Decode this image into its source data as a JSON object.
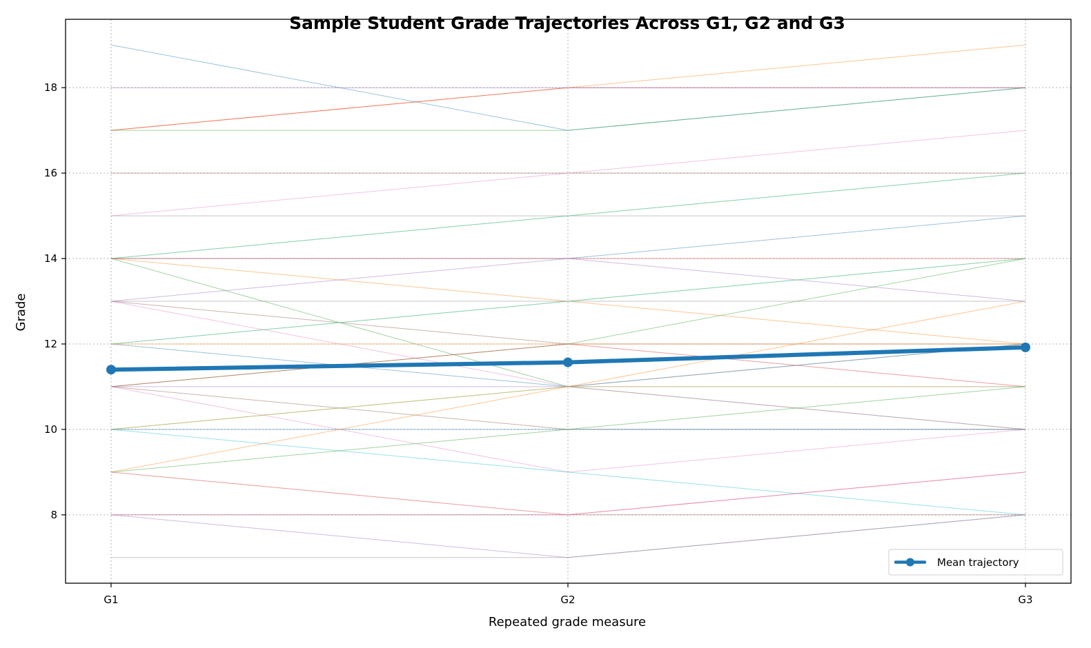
{
  "chart_data": {
    "type": "line",
    "title": "Sample Student Grade Trajectories Across G1, G2 and G3",
    "xlabel": "Repeated grade measure",
    "ylabel": "Grade",
    "categories": [
      "G1",
      "G2",
      "G3"
    ],
    "ylim": [
      6.4,
      19.6
    ],
    "yticks": [
      8,
      10,
      12,
      14,
      16,
      18
    ],
    "grid": true,
    "legend": {
      "position": "lower-right",
      "entries": [
        "Mean trajectory"
      ]
    },
    "mean_color": "#1f77b4",
    "mean_trajectory": {
      "name": "Mean trajectory",
      "values": [
        11.4,
        11.57,
        11.92
      ]
    },
    "student_colors": [
      "#1f77b4",
      "#ff7f0e",
      "#2ca02c",
      "#d62728",
      "#9467bd",
      "#8c564b",
      "#e377c2",
      "#7f7f7f",
      "#bcbd22",
      "#17becf"
    ],
    "student_trajectories": [
      [
        19,
        17,
        18
      ],
      [
        17,
        18,
        19
      ],
      [
        17,
        17,
        18
      ],
      [
        17,
        18,
        18
      ],
      [
        18,
        18,
        18
      ],
      [
        16,
        16,
        16
      ],
      [
        15,
        16,
        17
      ],
      [
        15,
        15,
        15
      ],
      [
        14,
        15,
        16
      ],
      [
        14,
        15,
        16
      ],
      [
        14,
        14,
        15
      ],
      [
        14,
        13,
        12
      ],
      [
        14,
        11,
        10
      ],
      [
        14,
        14,
        14
      ],
      [
        13,
        14,
        13
      ],
      [
        13,
        12,
        12
      ],
      [
        13,
        11,
        10
      ],
      [
        13,
        13,
        13
      ],
      [
        12,
        13,
        14
      ],
      [
        12,
        13,
        14
      ],
      [
        12,
        11,
        12
      ],
      [
        12,
        12,
        12
      ],
      [
        11,
        12,
        14
      ],
      [
        11,
        12,
        11
      ],
      [
        11,
        11,
        11
      ],
      [
        11,
        10,
        10
      ],
      [
        11,
        9,
        10
      ],
      [
        10,
        11,
        12
      ],
      [
        10,
        11,
        11
      ],
      [
        10,
        9,
        8
      ],
      [
        10,
        10,
        10
      ],
      [
        9,
        11,
        13
      ],
      [
        9,
        10,
        11
      ],
      [
        9,
        8,
        9
      ],
      [
        8,
        7,
        8
      ],
      [
        8,
        8,
        8
      ],
      [
        8,
        8,
        9
      ],
      [
        7,
        7,
        8
      ]
    ]
  }
}
